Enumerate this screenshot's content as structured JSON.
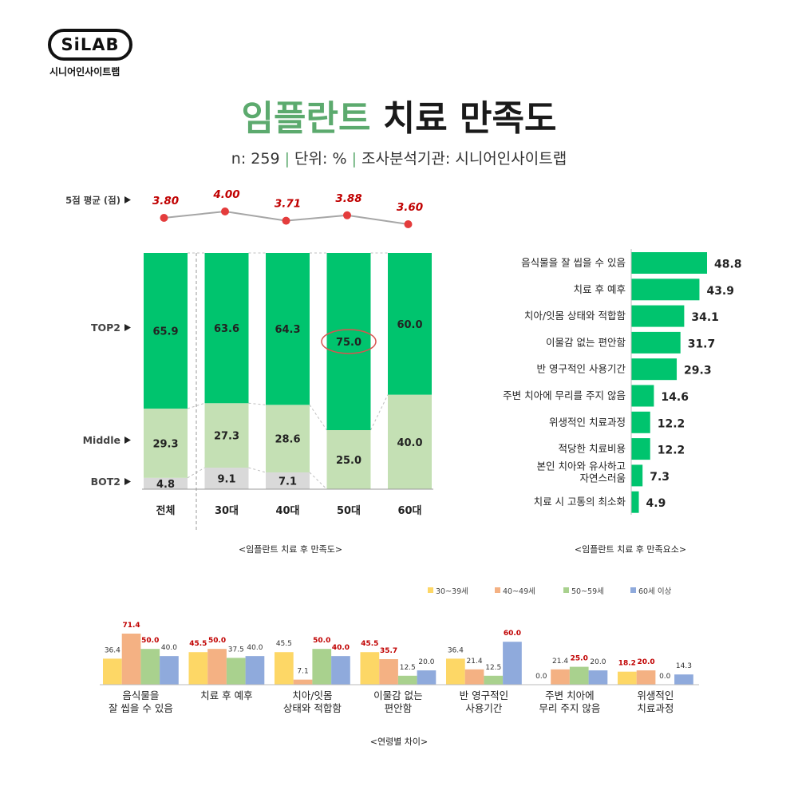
{
  "logo": {
    "mark": "SiLAB",
    "name": "시니어인사이트랩"
  },
  "header": {
    "title_accent": "임플란트",
    "title_rest": "치료 만족도",
    "subtitle_parts": [
      "n: 259",
      "단위: %",
      "조사분석기관: 시니어인사이트랩"
    ],
    "subtitle_sep": "|"
  },
  "colors": {
    "top2": "#00c46e",
    "middle": "#c4e0b4",
    "bot2": "#d9d9d9",
    "avg_point": "#e43c3c",
    "avg_label": "#c00000",
    "line": "#a6a6a6",
    "highlight_circle": "#d9534f",
    "age_30s": "#fdd766",
    "age_40s": "#f4b183",
    "age_50s": "#a9d18e",
    "age_60s": "#8faadc",
    "age_highlight": "#c00000"
  },
  "chart_data": [
    {
      "type": "bar",
      "stacked": true,
      "title": "<임플란트 치료 후 만족도>",
      "categories": [
        "전체",
        "30대",
        "40대",
        "50대",
        "60대"
      ],
      "row_labels": {
        "avg": "5점 평균 (점)",
        "top2": "TOP2",
        "middle": "Middle",
        "bot2": "BOT2"
      },
      "series": [
        {
          "name": "TOP2",
          "values": [
            65.9,
            63.6,
            64.3,
            75.0,
            60.0
          ]
        },
        {
          "name": "Middle",
          "values": [
            29.3,
            27.3,
            28.6,
            25.0,
            40.0
          ]
        },
        {
          "name": "BOT2",
          "values": [
            4.8,
            9.1,
            7.1,
            null,
            null
          ]
        }
      ],
      "average": {
        "values": [
          3.8,
          4.0,
          3.71,
          3.88,
          3.6
        ],
        "labels": [
          "3.80",
          "4.00",
          "3.71",
          "3.88",
          "3.60"
        ]
      },
      "highlight": {
        "category": "50대",
        "series": "TOP2"
      },
      "ylim": [
        0,
        100
      ]
    },
    {
      "type": "bar",
      "orientation": "horizontal",
      "title": "<임플란트 치료 후 만족요소>",
      "categories": [
        "음식물을 잘 씹을 수 있음",
        "치료 후 예후",
        "치아/잇몸 상태와 적합함",
        "이물감 없는 편안함",
        "반 영구적인 사용기간",
        "주변 치아에 무리를 주지 않음",
        "위생적인 치료과정",
        "적당한 치료비용",
        "본인 치아와 유사하고\n자연스러움",
        "치료 시 고통의 최소화"
      ],
      "values": [
        48.8,
        43.9,
        34.1,
        31.7,
        29.3,
        14.6,
        12.2,
        12.2,
        7.3,
        4.9
      ],
      "labels": [
        "48.8",
        "43.9",
        "34.1",
        "31.7",
        "29.3",
        "14.6",
        "12.2",
        "12.2",
        "7.3",
        "4.9"
      ]
    },
    {
      "type": "bar",
      "title": "<연령별 차이>",
      "legend_position": "top-right",
      "categories": [
        "음식물을\n잘 씹을 수 있음",
        "치료 후 예후",
        "치아/잇몸\n상태와 적합함",
        "이물감 없는\n편안함",
        "반 영구적인\n사용기간",
        "주변 치아에\n무리 주지 않음",
        "위생적인\n치료과정"
      ],
      "series": [
        {
          "name": "30~39세",
          "values": [
            36.4,
            45.5,
            45.5,
            45.5,
            36.4,
            0.0,
            18.2
          ],
          "labels": [
            "36.4",
            "45.5",
            "45.5",
            "45.5",
            "36.4",
            "0.0",
            "18.2"
          ],
          "highlight": [
            false,
            true,
            false,
            true,
            false,
            false,
            true
          ]
        },
        {
          "name": "40~49세",
          "values": [
            71.4,
            50.0,
            7.1,
            35.7,
            21.4,
            21.4,
            20.0
          ],
          "labels": [
            "71.4",
            "50.0",
            "7.1",
            "35.7",
            "21.4",
            "21.4",
            "20.0"
          ],
          "highlight": [
            true,
            true,
            false,
            true,
            false,
            false,
            true
          ]
        },
        {
          "name": "50~59세",
          "values": [
            50.0,
            37.5,
            50.0,
            12.5,
            12.5,
            25.0,
            0.0
          ],
          "labels": [
            "50.0",
            "37.5",
            "50.0",
            "12.5",
            "12.5",
            "25.0",
            "0.0"
          ],
          "highlight": [
            true,
            false,
            true,
            false,
            false,
            true,
            false
          ]
        },
        {
          "name": "60세 이상",
          "values": [
            40.0,
            40.0,
            40.0,
            20.0,
            60.0,
            20.0,
            14.3
          ],
          "labels": [
            "40.0",
            "40.0",
            "40.0",
            "20.0",
            "60.0",
            "20.0",
            "14.3"
          ],
          "highlight": [
            false,
            false,
            true,
            false,
            true,
            false,
            false
          ]
        }
      ],
      "ylim": [
        0,
        100
      ]
    }
  ]
}
